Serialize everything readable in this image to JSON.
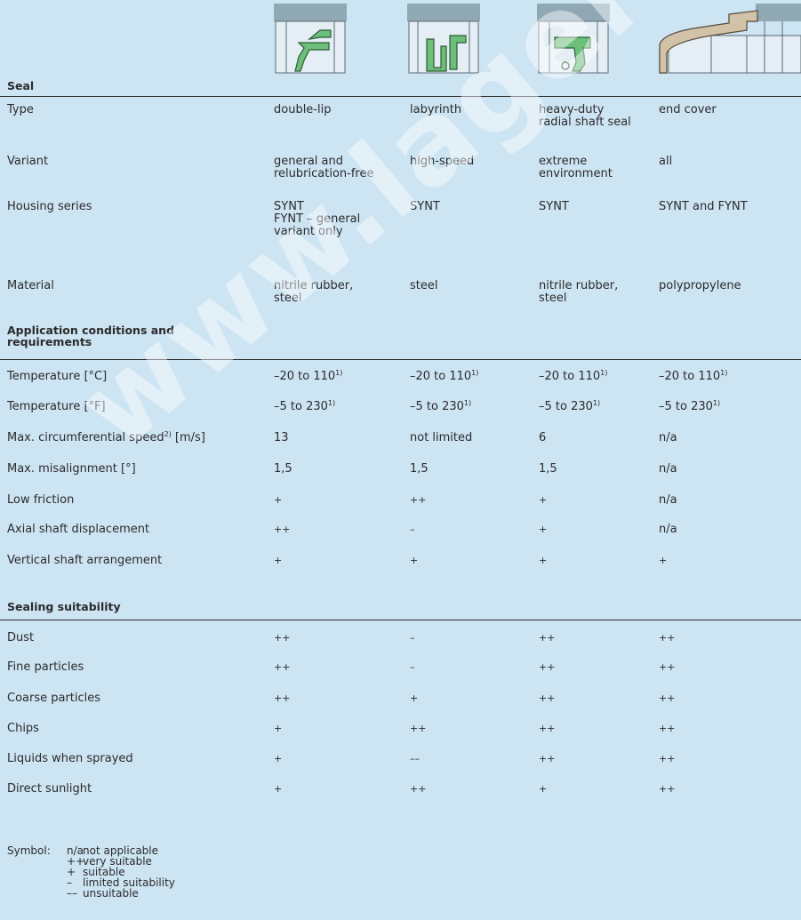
{
  "watermark": "www.lager-technik.e",
  "seal_images": [
    "double-lip-seal-drawing",
    "labyrinth-seal-drawing",
    "heavy-duty-seal-drawing",
    "end-cover-drawing"
  ],
  "section1": {
    "title": "Seal",
    "rows": [
      {
        "label": "Type",
        "cols": [
          "double-lip",
          "labyrinth",
          "heavy-duty\nradial shaft seal",
          "end cover"
        ]
      },
      {
        "label": "Variant",
        "cols": [
          "general and\nrelubrication-free",
          "high-speed",
          "extreme\nenvironment",
          "all"
        ]
      },
      {
        "label": "Housing series",
        "cols": [
          "SYNT\nFYNT – general\nvariant only",
          "SYNT",
          "SYNT",
          "SYNT and FYNT"
        ]
      },
      {
        "label": "Material",
        "cols": [
          "nitrile rubber,\nsteel",
          "steel",
          "nitrile rubber,\nsteel",
          "polypropylene"
        ]
      }
    ]
  },
  "section2": {
    "title": "Application conditions and\nrequirements",
    "rows": [
      {
        "label": "Temperature [°C]",
        "cols": [
          "–20 to 110",
          "–20 to 110",
          "–20 to 110",
          "–20 to 110"
        ],
        "sup": "1)"
      },
      {
        "label": "Temperature [°F]",
        "cols": [
          "–5 to 230",
          "–5 to 230",
          "–5 to 230",
          "–5 to 230"
        ],
        "sup": "1)"
      },
      {
        "label": "Max. circumferential speed",
        "label_sup": "2)",
        "label_suffix": " [m/s]",
        "cols": [
          "13",
          "not limited",
          "6",
          "n/a"
        ]
      },
      {
        "label": "Max. misalignment [°]",
        "cols": [
          "1,5",
          "1,5",
          "1,5",
          "n/a"
        ]
      },
      {
        "label": "Low friction",
        "cols": [
          "+",
          "++",
          "+",
          "n/a"
        ]
      },
      {
        "label": "Axial shaft displacement",
        "cols": [
          "++",
          "–",
          "+",
          "n/a"
        ]
      },
      {
        "label": "Vertical shaft arrangement",
        "cols": [
          "+",
          "+",
          "+",
          "+"
        ]
      }
    ]
  },
  "section3": {
    "title": "Sealing suitability",
    "rows": [
      {
        "label": "Dust",
        "cols": [
          "++",
          "–",
          "++",
          "++"
        ]
      },
      {
        "label": "Fine particles",
        "cols": [
          "++",
          "–",
          "++",
          "++"
        ]
      },
      {
        "label": "Coarse particles",
        "cols": [
          "++",
          "+",
          "++",
          "++"
        ]
      },
      {
        "label": "Chips",
        "cols": [
          "+",
          "++",
          "++",
          "++"
        ]
      },
      {
        "label": "Liquids when sprayed",
        "cols": [
          "+",
          "––",
          "++",
          "++"
        ]
      },
      {
        "label": "Direct sunlight",
        "cols": [
          "+",
          "++",
          "+",
          "++"
        ]
      }
    ]
  },
  "legend": {
    "label": "Symbol:",
    "items": [
      {
        "symbol": "n/a",
        "text": "not applicable"
      },
      {
        "symbol": "++",
        "text": "very suitable"
      },
      {
        "symbol": "+",
        "text": "suitable"
      },
      {
        "symbol": "–",
        "text": "limited suitability"
      },
      {
        "symbol": "––",
        "text": "unsuitable"
      }
    ]
  }
}
